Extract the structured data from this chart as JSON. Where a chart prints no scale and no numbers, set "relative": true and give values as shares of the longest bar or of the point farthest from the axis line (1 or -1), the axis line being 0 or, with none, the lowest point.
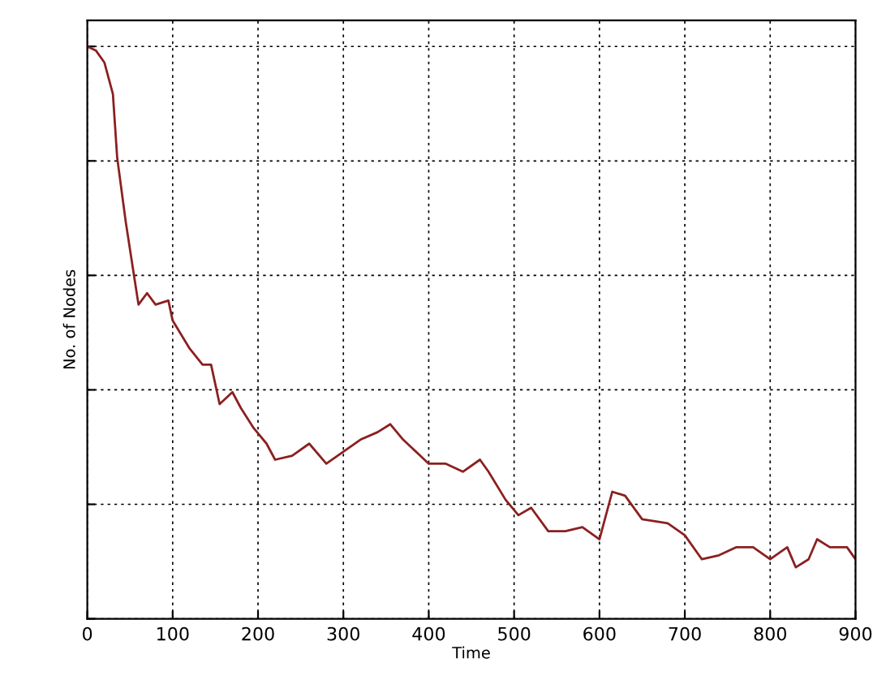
{
  "chart_data": {
    "type": "line",
    "relative": true,
    "xlabel": "Time",
    "ylabel": "No. of Nodes",
    "xlim": [
      0,
      900
    ],
    "xticks": [
      0,
      100,
      200,
      300,
      400,
      500,
      600,
      700,
      800,
      900
    ],
    "grid": true,
    "tick_labels": "x",
    "line_style": "solid",
    "x": [
      0,
      10,
      20,
      30,
      35,
      45,
      55,
      60,
      70,
      80,
      95,
      100,
      120,
      135,
      145,
      155,
      170,
      180,
      195,
      210,
      220,
      240,
      260,
      280,
      300,
      320,
      340,
      355,
      370,
      390,
      400,
      420,
      440,
      460,
      470,
      490,
      505,
      520,
      540,
      560,
      580,
      600,
      615,
      630,
      650,
      680,
      700,
      720,
      740,
      760,
      780,
      800,
      820,
      830,
      845,
      855,
      870,
      890,
      900
    ],
    "series": [
      {
        "color": "#8b2020",
        "values": [
          1.0,
          0.993,
          0.972,
          0.917,
          0.806,
          0.694,
          0.597,
          0.549,
          0.569,
          0.549,
          0.556,
          0.521,
          0.472,
          0.444,
          0.444,
          0.375,
          0.396,
          0.368,
          0.333,
          0.306,
          0.278,
          0.285,
          0.306,
          0.271,
          0.292,
          0.313,
          0.326,
          0.34,
          0.313,
          0.285,
          0.271,
          0.271,
          0.257,
          0.278,
          0.257,
          0.208,
          0.181,
          0.194,
          0.153,
          0.153,
          0.16,
          0.139,
          0.222,
          0.215,
          0.174,
          0.167,
          0.146,
          0.104,
          0.111,
          0.125,
          0.125,
          0.104,
          0.125,
          0.09,
          0.104,
          0.139,
          0.125,
          0.125,
          0.104
        ]
      }
    ]
  }
}
